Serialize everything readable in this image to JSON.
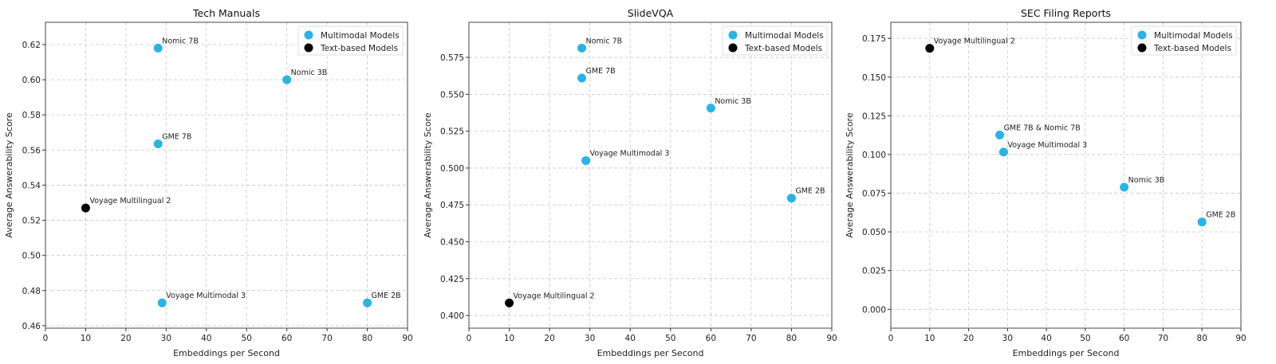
{
  "chart_data": [
    {
      "type": "scatter",
      "title": "Tech Manuals",
      "xlabel": "Embeddings per Second",
      "ylabel": "Average Answerability Score",
      "xlim": [
        0,
        90
      ],
      "ylim": [
        0.4586,
        0.6327
      ],
      "xticks": [
        0,
        10,
        20,
        30,
        40,
        50,
        60,
        70,
        80,
        90
      ],
      "yticks": [
        "0.46",
        "0.48",
        "0.50",
        "0.52",
        "0.54",
        "0.56",
        "0.58",
        "0.60",
        "0.62"
      ],
      "grid": true,
      "legend": "top-right",
      "series": [
        {
          "name": "Multimodal Models",
          "color": "#29b3e6",
          "points": [
            {
              "label": "Nomic 7B",
              "x": 28,
              "y": 0.618
            },
            {
              "label": "Nomic 3B",
              "x": 60,
              "y": 0.6
            },
            {
              "label": "GME 7B",
              "x": 28,
              "y": 0.5635
            },
            {
              "label": "Voyage Multimodal 3",
              "x": 29,
              "y": 0.473
            },
            {
              "label": "GME 2B",
              "x": 80,
              "y": 0.473
            }
          ]
        },
        {
          "name": "Text-based Models",
          "color": "#000000",
          "points": [
            {
              "label": "Voyage Multilingual 2",
              "x": 10,
              "y": 0.527
            }
          ]
        }
      ]
    },
    {
      "type": "scatter",
      "title": "SlideVQA",
      "xlabel": "Embeddings per Second",
      "ylabel": "Average Answerability Score",
      "xlim": [
        0,
        90
      ],
      "ylim": [
        0.3914,
        0.5988
      ],
      "xticks": [
        0,
        10,
        20,
        30,
        40,
        50,
        60,
        70,
        80,
        90
      ],
      "yticks": [
        "0.400",
        "0.425",
        "0.450",
        "0.475",
        "0.500",
        "0.525",
        "0.550",
        "0.575"
      ],
      "grid": true,
      "legend": "top-right",
      "series": [
        {
          "name": "Multimodal Models",
          "color": "#29b3e6",
          "points": [
            {
              "label": "Nomic 7B",
              "x": 28,
              "y": 0.5813
            },
            {
              "label": "GME 7B",
              "x": 28,
              "y": 0.561
            },
            {
              "label": "Nomic 3B",
              "x": 60,
              "y": 0.5406
            },
            {
              "label": "Voyage Multimodal 3",
              "x": 29,
              "y": 0.505
            },
            {
              "label": "GME 2B",
              "x": 80,
              "y": 0.4796
            }
          ]
        },
        {
          "name": "Text-based Models",
          "color": "#000000",
          "points": [
            {
              "label": "Voyage Multilingual 2",
              "x": 10,
              "y": 0.4085
            }
          ]
        }
      ]
    },
    {
      "type": "scatter",
      "title": "SEC Filing Reports",
      "xlabel": "Embeddings per Second",
      "ylabel": "Average Answerability Score",
      "xlim": [
        0,
        90
      ],
      "ylim": [
        -0.0122,
        0.1854
      ],
      "xticks": [
        0,
        10,
        20,
        30,
        40,
        50,
        60,
        70,
        80,
        90
      ],
      "yticks": [
        "0.000",
        "0.025",
        "0.050",
        "0.075",
        "0.100",
        "0.125",
        "0.150",
        "0.175"
      ],
      "grid": true,
      "legend": "top-right",
      "series": [
        {
          "name": "Multimodal Models",
          "color": "#29b3e6",
          "points": [
            {
              "label": "GME 7B & Nomic 7B",
              "x": 28,
              "y": 0.1126
            },
            {
              "label": "Voyage Multimodal 3",
              "x": 29,
              "y": 0.1016
            },
            {
              "label": "Nomic 3B",
              "x": 60,
              "y": 0.0789
            },
            {
              "label": "GME 2B",
              "x": 80,
              "y": 0.0564
            }
          ]
        },
        {
          "name": "Text-based Models",
          "color": "#000000",
          "points": [
            {
              "label": "Voyage Multilingual 2",
              "x": 10,
              "y": 0.1686
            }
          ]
        }
      ]
    }
  ]
}
